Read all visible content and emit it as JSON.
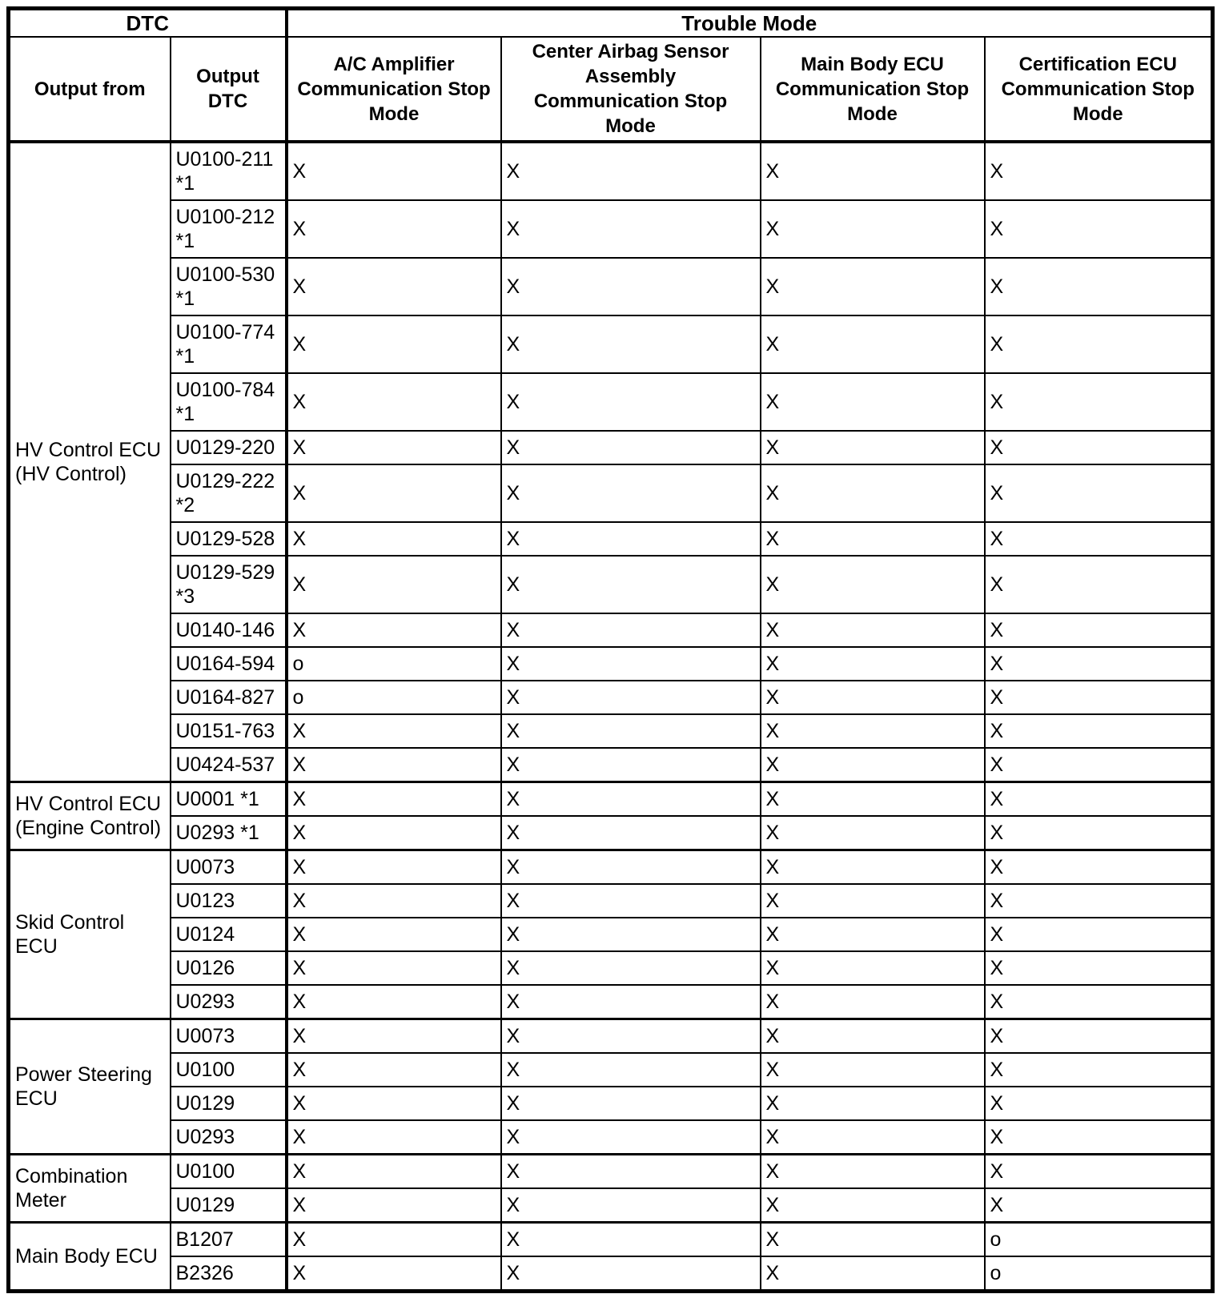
{
  "table": {
    "header": {
      "dtc_group": "DTC",
      "trouble_mode_group": "Trouble Mode",
      "columns": [
        "Output from",
        "Output\nDTC",
        "A/C Amplifier\nCommunication Stop\nMode",
        "Center Airbag Sensor\nAssembly\nCommunication Stop\nMode",
        "Main Body ECU\nCommunication Stop\nMode",
        "Certification ECU\nCommunication Stop\nMode"
      ]
    },
    "groups": [
      {
        "source": "HV Control ECU\n(HV Control)",
        "rows": [
          {
            "dtc": "U0100-211\n*1",
            "values": [
              "X",
              "X",
              "X",
              "X"
            ]
          },
          {
            "dtc": "U0100-212\n*1",
            "values": [
              "X",
              "X",
              "X",
              "X"
            ]
          },
          {
            "dtc": "U0100-530\n*1",
            "values": [
              "X",
              "X",
              "X",
              "X"
            ]
          },
          {
            "dtc": "U0100-774\n*1",
            "values": [
              "X",
              "X",
              "X",
              "X"
            ]
          },
          {
            "dtc": "U0100-784\n*1",
            "values": [
              "X",
              "X",
              "X",
              "X"
            ]
          },
          {
            "dtc": "U0129-220",
            "values": [
              "X",
              "X",
              "X",
              "X"
            ]
          },
          {
            "dtc": "U0129-222\n*2",
            "values": [
              "X",
              "X",
              "X",
              "X"
            ]
          },
          {
            "dtc": "U0129-528",
            "values": [
              "X",
              "X",
              "X",
              "X"
            ]
          },
          {
            "dtc": "U0129-529\n*3",
            "values": [
              "X",
              "X",
              "X",
              "X"
            ]
          },
          {
            "dtc": "U0140-146",
            "values": [
              "X",
              "X",
              "X",
              "X"
            ]
          },
          {
            "dtc": "U0164-594",
            "values": [
              "o",
              "X",
              "X",
              "X"
            ]
          },
          {
            "dtc": "U0164-827",
            "values": [
              "o",
              "X",
              "X",
              "X"
            ]
          },
          {
            "dtc": "U0151-763",
            "values": [
              "X",
              "X",
              "X",
              "X"
            ]
          },
          {
            "dtc": "U0424-537",
            "values": [
              "X",
              "X",
              "X",
              "X"
            ]
          }
        ]
      },
      {
        "source": "HV Control ECU\n(Engine Control)",
        "rows": [
          {
            "dtc": "U0001 *1",
            "values": [
              "X",
              "X",
              "X",
              "X"
            ]
          },
          {
            "dtc": "U0293 *1",
            "values": [
              "X",
              "X",
              "X",
              "X"
            ]
          }
        ]
      },
      {
        "source": "Skid Control\nECU",
        "rows": [
          {
            "dtc": "U0073",
            "values": [
              "X",
              "X",
              "X",
              "X"
            ]
          },
          {
            "dtc": "U0123",
            "values": [
              "X",
              "X",
              "X",
              "X"
            ]
          },
          {
            "dtc": "U0124",
            "values": [
              "X",
              "X",
              "X",
              "X"
            ]
          },
          {
            "dtc": "U0126",
            "values": [
              "X",
              "X",
              "X",
              "X"
            ]
          },
          {
            "dtc": "U0293",
            "values": [
              "X",
              "X",
              "X",
              "X"
            ]
          }
        ]
      },
      {
        "source": "Power Steering\nECU",
        "rows": [
          {
            "dtc": "U0073",
            "values": [
              "X",
              "X",
              "X",
              "X"
            ]
          },
          {
            "dtc": "U0100",
            "values": [
              "X",
              "X",
              "X",
              "X"
            ]
          },
          {
            "dtc": "U0129",
            "values": [
              "X",
              "X",
              "X",
              "X"
            ]
          },
          {
            "dtc": "U0293",
            "values": [
              "X",
              "X",
              "X",
              "X"
            ]
          }
        ]
      },
      {
        "source": "Combination\nMeter",
        "rows": [
          {
            "dtc": "U0100",
            "values": [
              "X",
              "X",
              "X",
              "X"
            ]
          },
          {
            "dtc": "U0129",
            "values": [
              "X",
              "X",
              "X",
              "X"
            ]
          }
        ]
      },
      {
        "source": "Main Body ECU",
        "rows": [
          {
            "dtc": "B1207",
            "values": [
              "X",
              "X",
              "X",
              "o"
            ]
          },
          {
            "dtc": "B2326",
            "values": [
              "X",
              "X",
              "X",
              "o"
            ]
          }
        ]
      }
    ]
  }
}
